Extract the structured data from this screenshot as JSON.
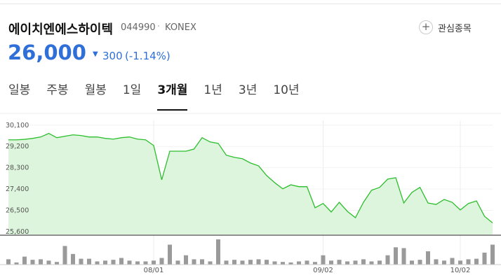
{
  "header": {
    "name": "에이치엔에스하이텍",
    "code": "044990",
    "market": "KONEX",
    "watch_button": "관심종목",
    "price": "26,000",
    "change": "300",
    "change_pct": "(-1.14%)"
  },
  "tabs": {
    "items": [
      "일봉",
      "주봉",
      "월봉",
      "1일",
      "3개월",
      "1년",
      "3년",
      "10년"
    ],
    "active": 4
  },
  "chart_data": {
    "type": "line",
    "categories": [
      null,
      null,
      null,
      null,
      null,
      null,
      null,
      null,
      null,
      null,
      null,
      null,
      null,
      null,
      null,
      null,
      null,
      null,
      "08/01",
      null,
      null,
      null,
      null,
      null,
      null,
      null,
      null,
      null,
      null,
      null,
      null,
      null,
      null,
      null,
      null,
      null,
      null,
      null,
      null,
      "09/02",
      null,
      null,
      null,
      null,
      null,
      null,
      null,
      null,
      null,
      null,
      null,
      null,
      null,
      null,
      null,
      null,
      "10/02",
      null,
      null,
      null,
      null
    ],
    "values": [
      29480,
      29480,
      29500,
      29540,
      29600,
      29750,
      29570,
      29630,
      29690,
      29660,
      29600,
      29600,
      29540,
      29510,
      29570,
      29600,
      29510,
      29480,
      29240,
      27790,
      29000,
      29000,
      29000,
      29090,
      29570,
      29390,
      29330,
      28830,
      28740,
      28680,
      28500,
      28380,
      27970,
      27670,
      27410,
      27580,
      27500,
      27500,
      26610,
      26790,
      26430,
      26840,
      26460,
      26190,
      26840,
      27350,
      27470,
      27820,
      27880,
      26810,
      27260,
      27470,
      26810,
      26750,
      26960,
      26840,
      26520,
      26790,
      26900,
      26250,
      25970
    ],
    "color": "#2dbe2d",
    "fill": "#dcf5dc",
    "ylim": [
      25480,
      30300
    ],
    "yticks": [
      {
        "value": 30100,
        "label": "30,100"
      },
      {
        "value": 29200,
        "label": "29,200"
      },
      {
        "value": 28300,
        "label": "28,300"
      },
      {
        "value": 27400,
        "label": "27,400"
      },
      {
        "value": 26500,
        "label": "26,500"
      },
      {
        "value": 25600,
        "label": "25,600"
      }
    ],
    "grid": true,
    "volume": {
      "values": [
        20,
        8,
        30,
        18,
        20,
        15,
        10,
        70,
        40,
        22,
        22,
        12,
        15,
        18,
        25,
        15,
        12,
        12,
        15,
        25,
        75,
        15,
        35,
        20,
        20,
        12,
        95,
        15,
        18,
        15,
        18,
        20,
        18,
        12,
        10,
        8,
        12,
        15,
        10,
        35,
        15,
        18,
        12,
        15,
        20,
        12,
        15,
        35,
        65,
        62,
        15,
        18,
        50,
        20,
        15,
        25,
        15,
        20,
        22,
        45,
        75
      ],
      "color": "#9a9a9a",
      "ylim": [
        0,
        100
      ]
    }
  }
}
